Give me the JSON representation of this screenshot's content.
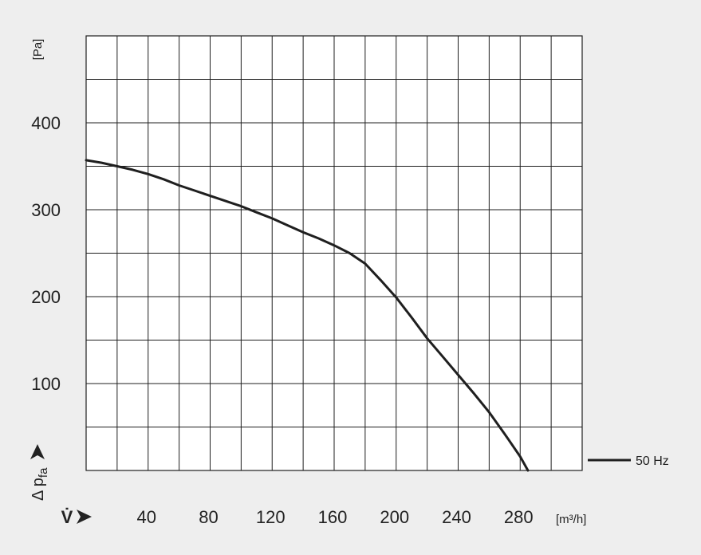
{
  "chart_data": {
    "type": "line",
    "xlabel": "V̇",
    "xunit": "[m³/h]",
    "ylabel": "Δ p",
    "ylabel_subscript": "fa",
    "yunit": "[Pa]",
    "x_ticks": [
      40,
      80,
      120,
      160,
      200,
      240,
      280
    ],
    "y_ticks": [
      100,
      200,
      300,
      400
    ],
    "xlim": [
      0,
      320
    ],
    "ylim": [
      0,
      500
    ],
    "grid": true,
    "legend_position": "right",
    "colors": {
      "background": "#eeeeee",
      "plot_bg": "#ffffff",
      "line": "#1f1f1f",
      "grid": "#1f1f1f"
    },
    "series": [
      {
        "name": "50 Hz",
        "x": [
          0,
          10,
          20,
          30,
          40,
          50,
          60,
          70,
          80,
          90,
          100,
          110,
          120,
          130,
          140,
          150,
          160,
          170,
          180,
          190,
          200,
          210,
          220,
          230,
          240,
          250,
          260,
          270,
          280,
          285
        ],
        "y": [
          357,
          354,
          350,
          346,
          341,
          335,
          328,
          322,
          316,
          310,
          304,
          297,
          290,
          282,
          274,
          267,
          259,
          250,
          238,
          219,
          199,
          176,
          152,
          131,
          110,
          89,
          67,
          42,
          16,
          0
        ]
      }
    ]
  }
}
